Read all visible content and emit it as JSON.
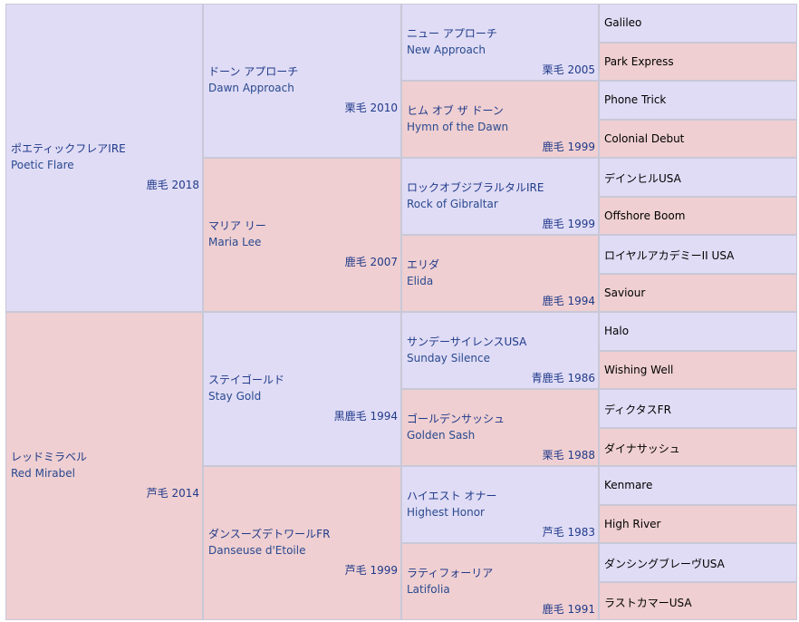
{
  "colors": {
    "male": "#e0dcf5",
    "female": "#efcfd1",
    "border": "#c8c8d8",
    "text": "#203a8a"
  },
  "gen1": [
    {
      "ja": "ポエティックフレアIRE",
      "en": "Poetic Flare",
      "info": "鹿毛 2018"
    },
    {
      "ja": "レッドミラベル",
      "en": "Red Mirabel",
      "info": "芦毛 2014"
    }
  ],
  "gen2": [
    {
      "ja": "ドーン アプローチ",
      "en": "Dawn Approach",
      "info": "栗毛 2010"
    },
    {
      "ja": "マリア リー",
      "en": "Maria Lee",
      "info": "鹿毛 2007"
    },
    {
      "ja": "ステイゴールド",
      "en": "Stay Gold",
      "info": "黒鹿毛 1994"
    },
    {
      "ja": "ダンスーズデトワールFR",
      "en": "Danseuse d'Etoile",
      "info": "芦毛 1999"
    }
  ],
  "gen3": [
    {
      "ja": "ニュー アプローチ",
      "en": "New Approach",
      "info": "栗毛 2005"
    },
    {
      "ja": "ヒム オブ ザ ドーン",
      "en": "Hymn of the Dawn",
      "info": "鹿毛 1999"
    },
    {
      "ja": "ロックオブジブラルタルIRE",
      "en": "Rock of Gibraltar",
      "info": "鹿毛 1999"
    },
    {
      "ja": "エリダ",
      "en": "Elida",
      "info": "鹿毛 1994"
    },
    {
      "ja": "サンデーサイレンスUSA",
      "en": "Sunday Silence",
      "info": "青鹿毛 1986"
    },
    {
      "ja": "ゴールデンサッシュ",
      "en": "Golden Sash",
      "info": "栗毛 1988"
    },
    {
      "ja": "ハイエスト オナー",
      "en": "Highest Honor",
      "info": "芦毛 1983"
    },
    {
      "ja": "ラティフォーリア",
      "en": "Latifolia",
      "info": "鹿毛 1991"
    }
  ],
  "gen4": [
    "Galileo",
    "Park Express",
    "Phone Trick",
    "Colonial Debut",
    "デインヒルUSA",
    "Offshore Boom",
    "ロイヤルアカデミーII USA",
    "Saviour",
    "Halo",
    "Wishing Well",
    "ディクタスFR",
    "ダイナサッシュ",
    "Kenmare",
    "High River",
    "ダンシングブレーヴUSA",
    "ラストカマーUSA"
  ]
}
